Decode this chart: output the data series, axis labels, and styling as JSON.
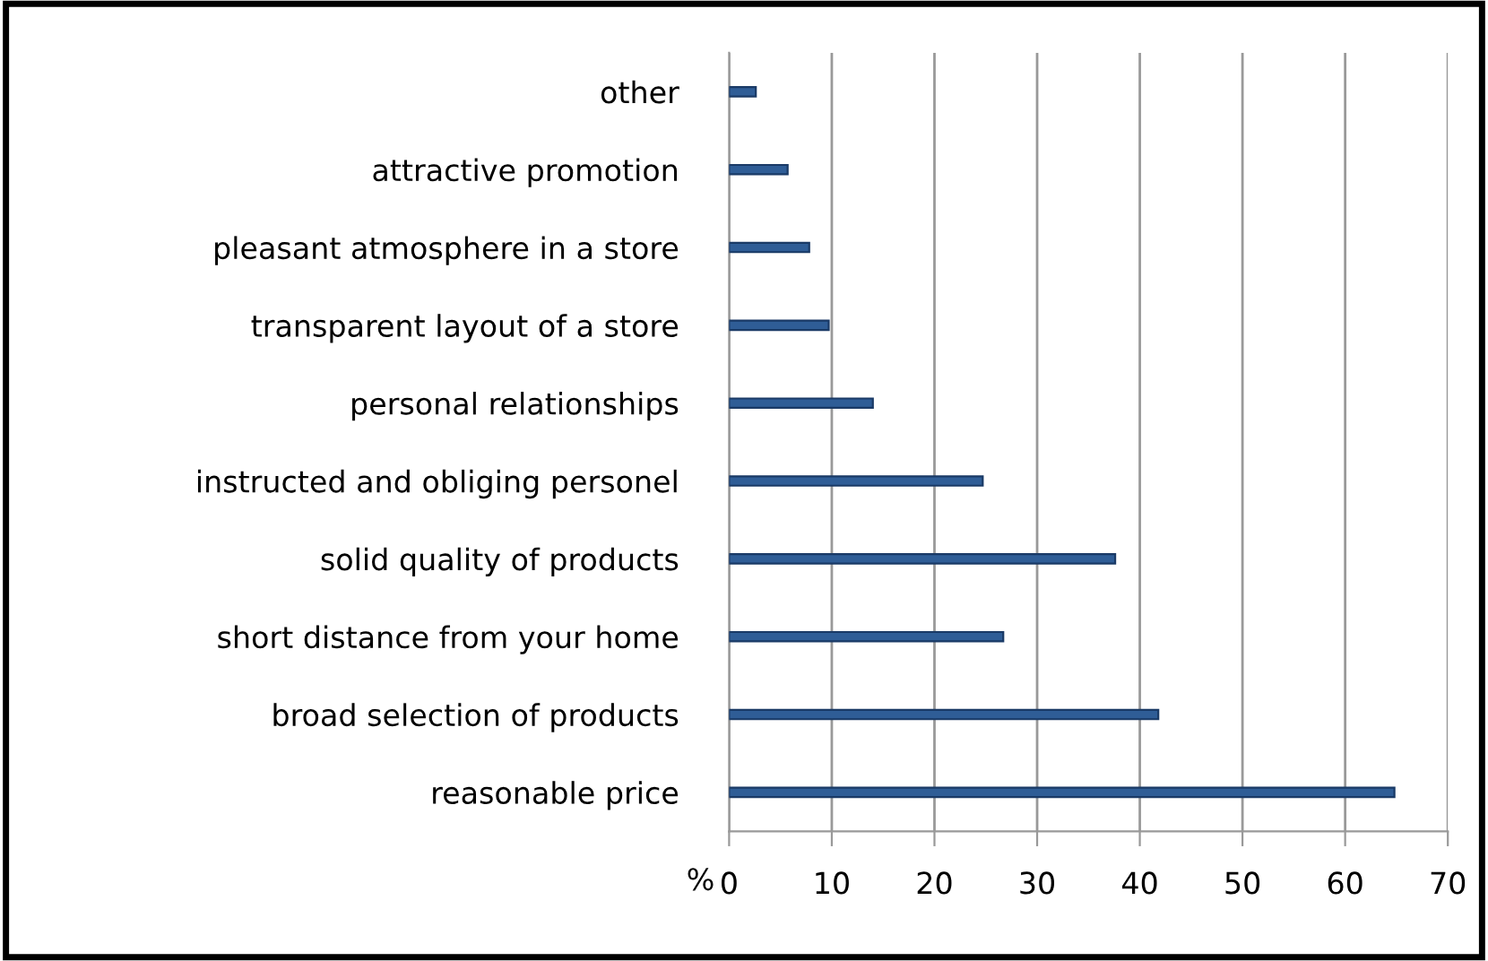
{
  "chart_data": {
    "type": "bar",
    "orientation": "horizontal",
    "xlabel": "%",
    "categories": [
      "other",
      "attractive promotion",
      "pleasant atmosphere in a store",
      "transparent layout of a store",
      "personal relationships",
      "instructed and obliging personel",
      "solid quality of products",
      "short distance from your home",
      "broad selection of products",
      "reasonable price"
    ],
    "values": [
      2.6,
      5.7,
      7.8,
      9.7,
      14.0,
      24.7,
      37.6,
      26.7,
      41.8,
      64.8
    ],
    "color": "#2f5d96",
    "xlim": [
      0,
      70
    ],
    "xticks": [
      0,
      10,
      20,
      30,
      40,
      50,
      60,
      70
    ],
    "grid": "x"
  }
}
